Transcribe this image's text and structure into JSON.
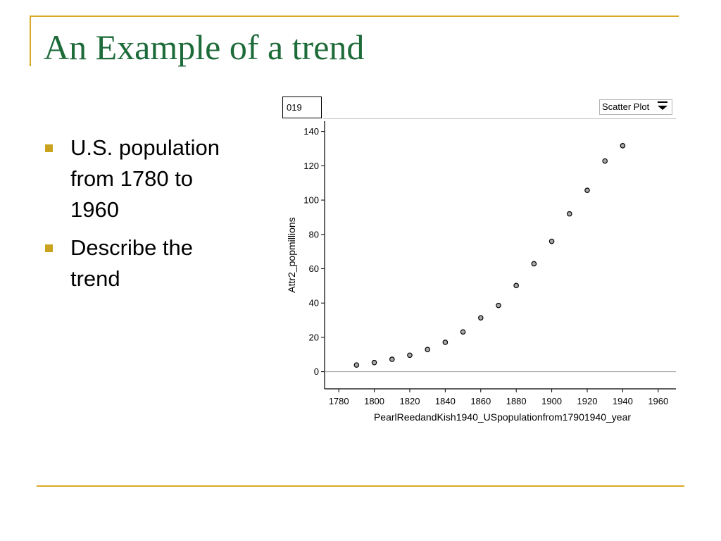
{
  "slide": {
    "title": "An Example of a trend",
    "bullets": [
      "U.S. population from 1780 to 1960",
      "Describe the trend"
    ]
  },
  "app": {
    "case_label": "019",
    "plot_type": "Scatter Plot"
  },
  "colors": {
    "title": "#1e6b3a",
    "frame": "#d9a925",
    "bullet": "#c9a21e",
    "point_fill": "#aaaaaa",
    "point_stroke": "#000000"
  },
  "chart_data": {
    "type": "scatter",
    "xlabel": "PearlReedandKish1940_USpopulationfrom17901940_year",
    "ylabel": "Attr2_popmillions",
    "xlim": [
      1772,
      1970
    ],
    "ylim": [
      -10,
      146
    ],
    "x_ticks": [
      1780,
      1800,
      1820,
      1840,
      1860,
      1880,
      1900,
      1920,
      1940,
      1960
    ],
    "y_ticks": [
      0,
      20,
      40,
      60,
      80,
      100,
      120,
      140
    ],
    "zero_line": true,
    "points": [
      {
        "x": 1790,
        "y": 3.9
      },
      {
        "x": 1800,
        "y": 5.3
      },
      {
        "x": 1810,
        "y": 7.2
      },
      {
        "x": 1820,
        "y": 9.6
      },
      {
        "x": 1830,
        "y": 12.9
      },
      {
        "x": 1840,
        "y": 17.1
      },
      {
        "x": 1850,
        "y": 23.2
      },
      {
        "x": 1860,
        "y": 31.4
      },
      {
        "x": 1870,
        "y": 38.6
      },
      {
        "x": 1880,
        "y": 50.2
      },
      {
        "x": 1890,
        "y": 62.9
      },
      {
        "x": 1900,
        "y": 76.0
      },
      {
        "x": 1910,
        "y": 92.0
      },
      {
        "x": 1920,
        "y": 105.7
      },
      {
        "x": 1930,
        "y": 122.8
      },
      {
        "x": 1940,
        "y": 131.7
      }
    ]
  }
}
